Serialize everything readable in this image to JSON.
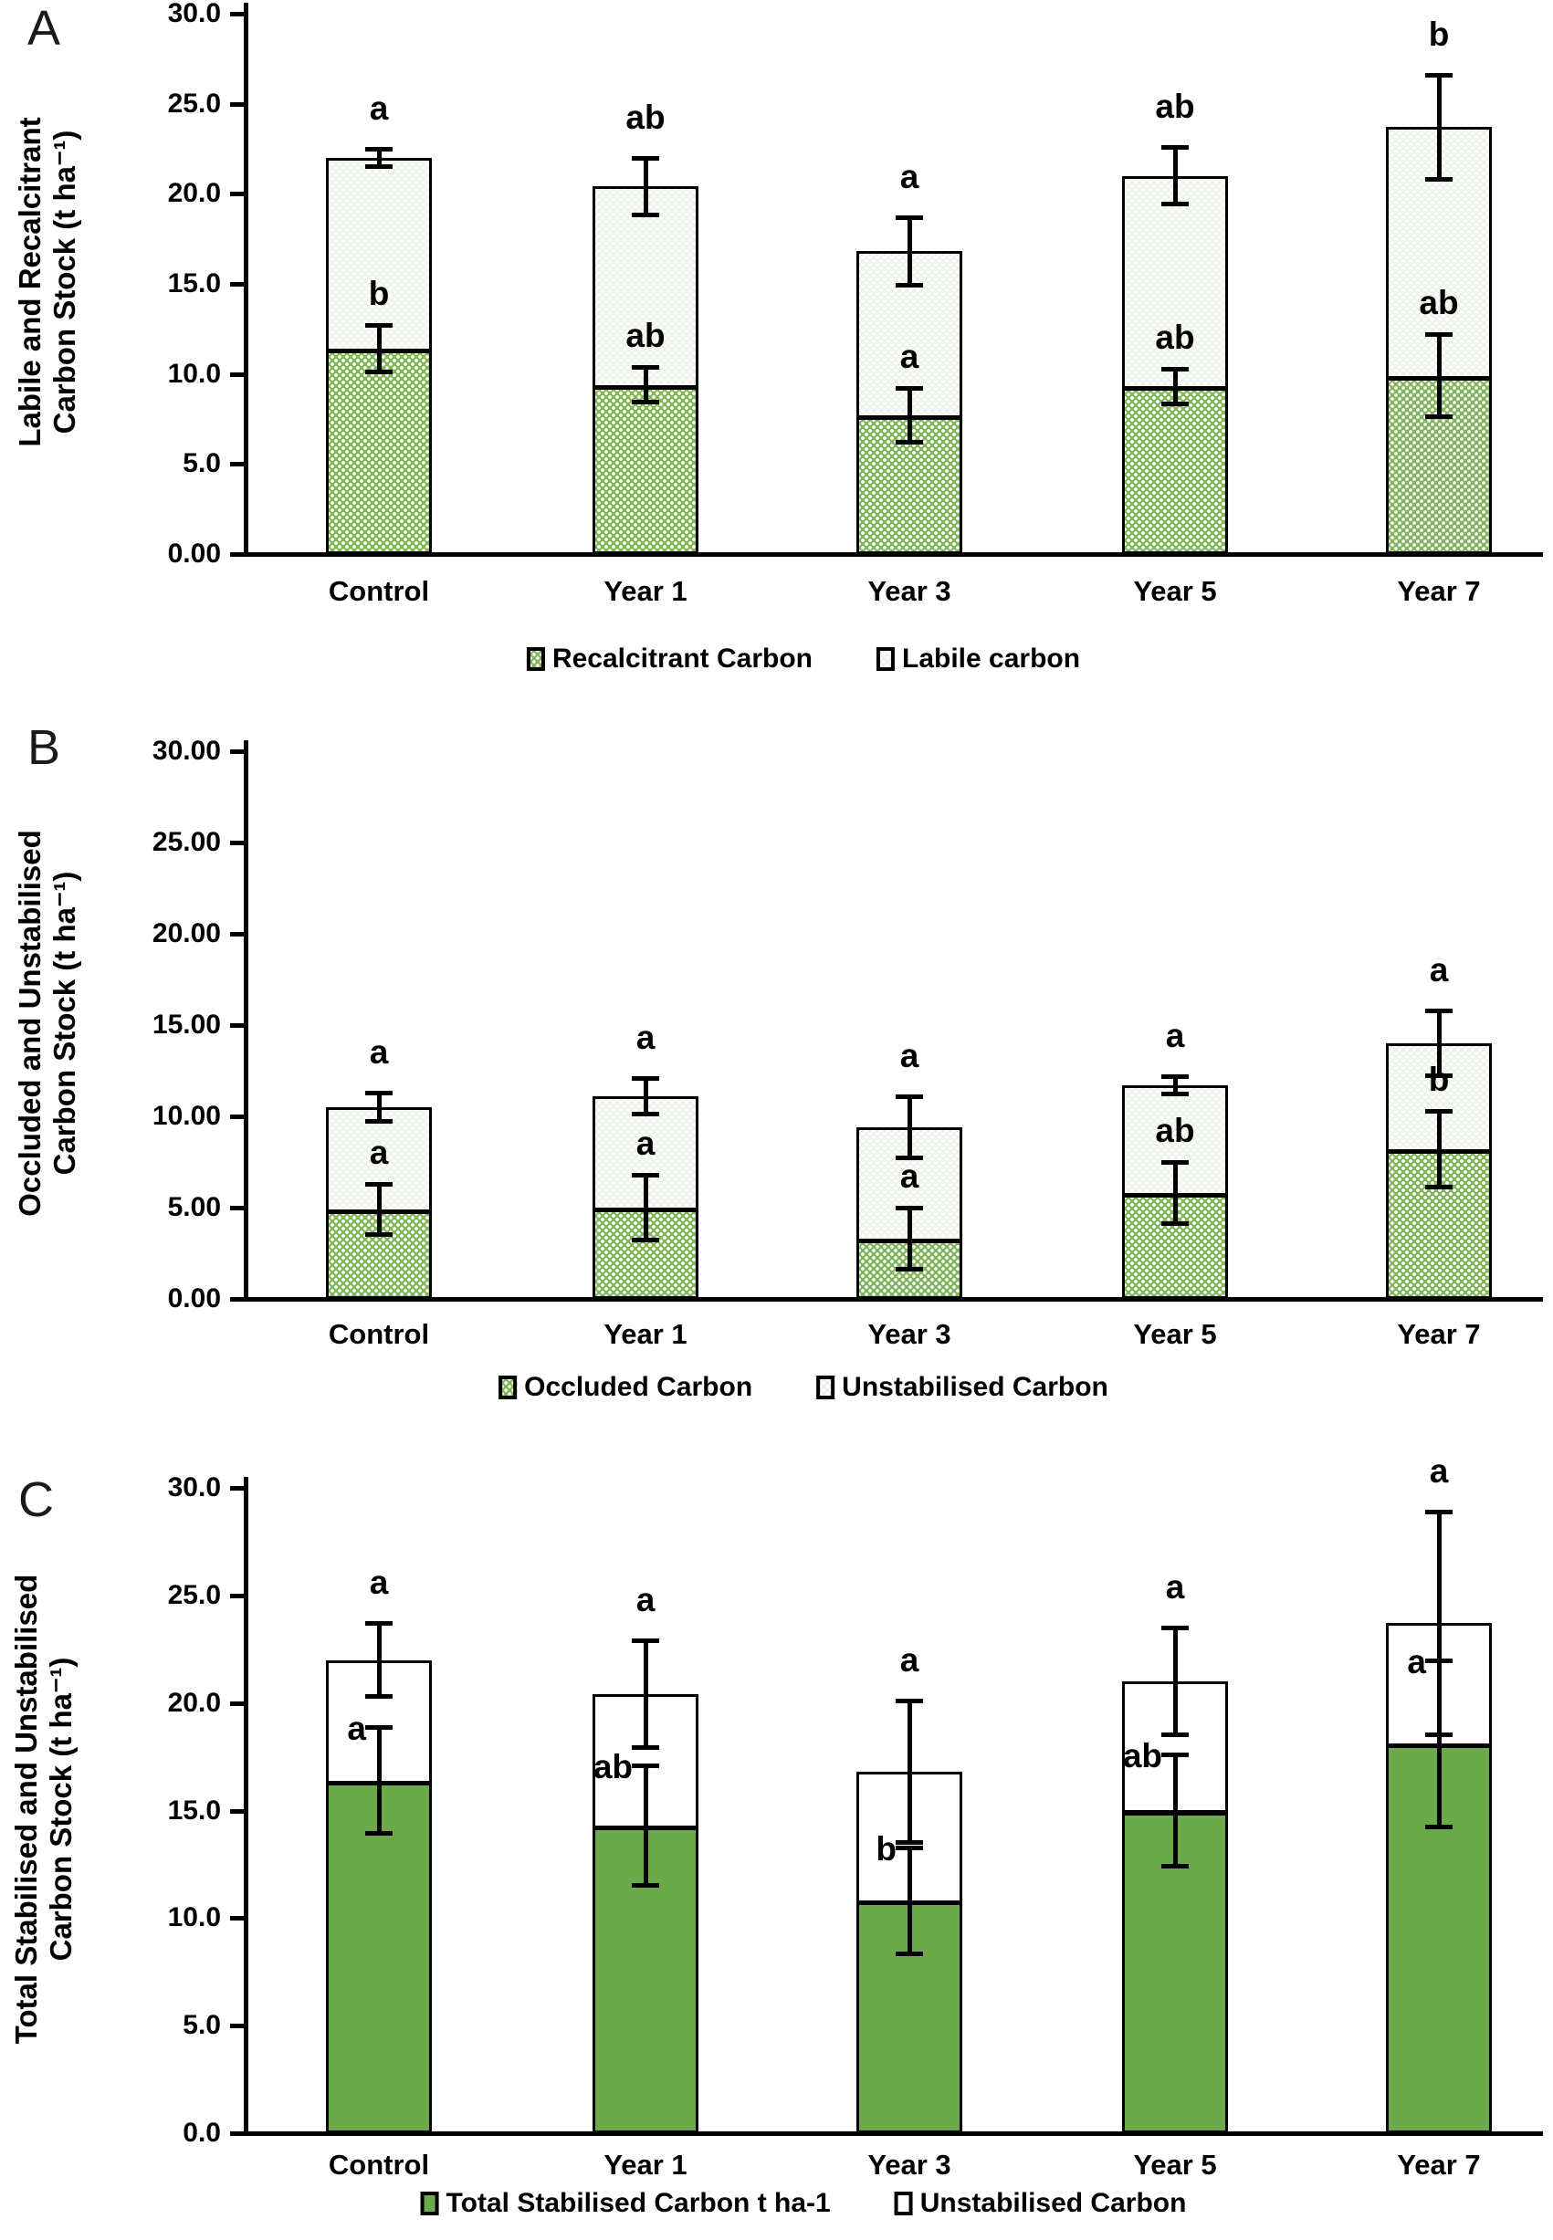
{
  "page": {
    "background": "#ffffff"
  },
  "colors": {
    "axis": "#000000",
    "green_dotted": "#83b75a",
    "pale_dotted": "#eef3e8",
    "green_solid": "#6ba94a",
    "white_fill": "#ffffff"
  },
  "chart_data": [
    {
      "panel": "A",
      "type": "bar",
      "stacked": true,
      "ylabel_lines": [
        "Labile and Recalcitrant",
        "Carbon Stock (t ha⁻¹)"
      ],
      "yticks": [
        "30.0",
        "25.0",
        "20.0",
        "15.0",
        "10.0",
        "5.0",
        "0.00"
      ],
      "ylim": [
        0,
        30
      ],
      "grid": false,
      "legend_position": "bottom",
      "categories": [
        "Control",
        "Year 1",
        "Year 3",
        "Year 5",
        "Year 7"
      ],
      "series": [
        {
          "name": "Recalcitrant Carbon",
          "role": "base",
          "fill": "green_dotted",
          "values": [
            11.4,
            9.4,
            7.7,
            9.3,
            9.9
          ],
          "errors": [
            1.3,
            1.0,
            1.5,
            1.0,
            2.3
          ],
          "letters": [
            "b",
            "ab",
            "a",
            "ab",
            "ab"
          ],
          "letter_placement": "above"
        },
        {
          "name": "Labile carbon",
          "role": "top",
          "fill": "pale_dotted",
          "totals": [
            22.0,
            20.4,
            16.8,
            21.0,
            23.7
          ],
          "errors": [
            0.5,
            1.6,
            1.9,
            1.6,
            2.9
          ],
          "letters": [
            "a",
            "ab",
            "a",
            "ab",
            "b"
          ],
          "letter_placement": "above"
        }
      ],
      "legend": [
        {
          "label": "Recalcitrant Carbon",
          "fill": "green_dotted"
        },
        {
          "label": "Labile carbon",
          "fill": "pale_dotted"
        }
      ]
    },
    {
      "panel": "B",
      "type": "bar",
      "stacked": true,
      "ylabel_lines": [
        "Occluded and Unstabilised",
        "Carbon Stock (t ha⁻¹)"
      ],
      "yticks": [
        "30.00",
        "25.00",
        "20.00",
        "15.00",
        "10.00",
        "5.00",
        "0.00"
      ],
      "ylim": [
        0,
        30
      ],
      "grid": false,
      "legend_position": "bottom",
      "categories": [
        "Control",
        "Year 1",
        "Year 3",
        "Year 5",
        "Year 7"
      ],
      "series": [
        {
          "name": "Occluded Carbon",
          "role": "base",
          "fill": "green_dotted",
          "values": [
            4.9,
            5.0,
            3.3,
            5.8,
            8.2
          ],
          "errors": [
            1.4,
            1.8,
            1.7,
            1.7,
            2.1
          ],
          "letters": [
            "a",
            "a",
            "a",
            "ab",
            "b"
          ],
          "letter_placement": "above"
        },
        {
          "name": "Unstabilised Carbon",
          "role": "top",
          "fill": "pale_dotted",
          "totals": [
            10.5,
            11.1,
            9.4,
            11.7,
            14.0
          ],
          "errors": [
            0.8,
            1.0,
            1.7,
            0.5,
            1.8
          ],
          "letters": [
            "a",
            "a",
            "a",
            "a",
            "a"
          ],
          "letter_placement": "above"
        }
      ],
      "legend": [
        {
          "label": "Occluded Carbon",
          "fill": "green_dotted"
        },
        {
          "label": "Unstabilised Carbon",
          "fill": "pale_dotted"
        }
      ]
    },
    {
      "panel": "C",
      "type": "bar",
      "stacked": true,
      "ylabel_lines": [
        "Total Stabilised and Unstabilised",
        "Carbon Stock (t ha⁻¹)"
      ],
      "yticks": [
        "30.0",
        "25.0",
        "20.0",
        "15.0",
        "10.0",
        "5.0",
        "0.0"
      ],
      "ylim": [
        0,
        30
      ],
      "grid": false,
      "legend_position": "bottom",
      "categories": [
        "Control",
        "Year 1",
        "Year 3",
        "Year 5",
        "Year 7"
      ],
      "series": [
        {
          "name": "Total Stabilised Carbon t ha-1",
          "role": "base",
          "fill": "green_solid",
          "values": [
            16.4,
            14.3,
            10.8,
            15.0,
            18.1
          ],
          "errors": [
            2.5,
            2.8,
            2.5,
            2.6,
            3.9
          ],
          "letters": [
            "a",
            "ab",
            "b",
            "ab",
            "a"
          ],
          "letter_placement": "beside"
        },
        {
          "name": "Unstabilised Carbon",
          "role": "top",
          "fill": "white_fill",
          "totals": [
            22.0,
            20.4,
            16.8,
            21.0,
            23.7
          ],
          "errors": [
            1.7,
            2.5,
            3.3,
            2.5,
            5.2
          ],
          "letters": [
            "a",
            "a",
            "a",
            "a",
            "a"
          ],
          "letter_placement": "above"
        }
      ],
      "legend": [
        {
          "label": "Total Stabilised Carbon t ha-1",
          "fill": "green_solid"
        },
        {
          "label": "Unstabilised Carbon",
          "fill": "white_fill"
        }
      ]
    }
  ]
}
